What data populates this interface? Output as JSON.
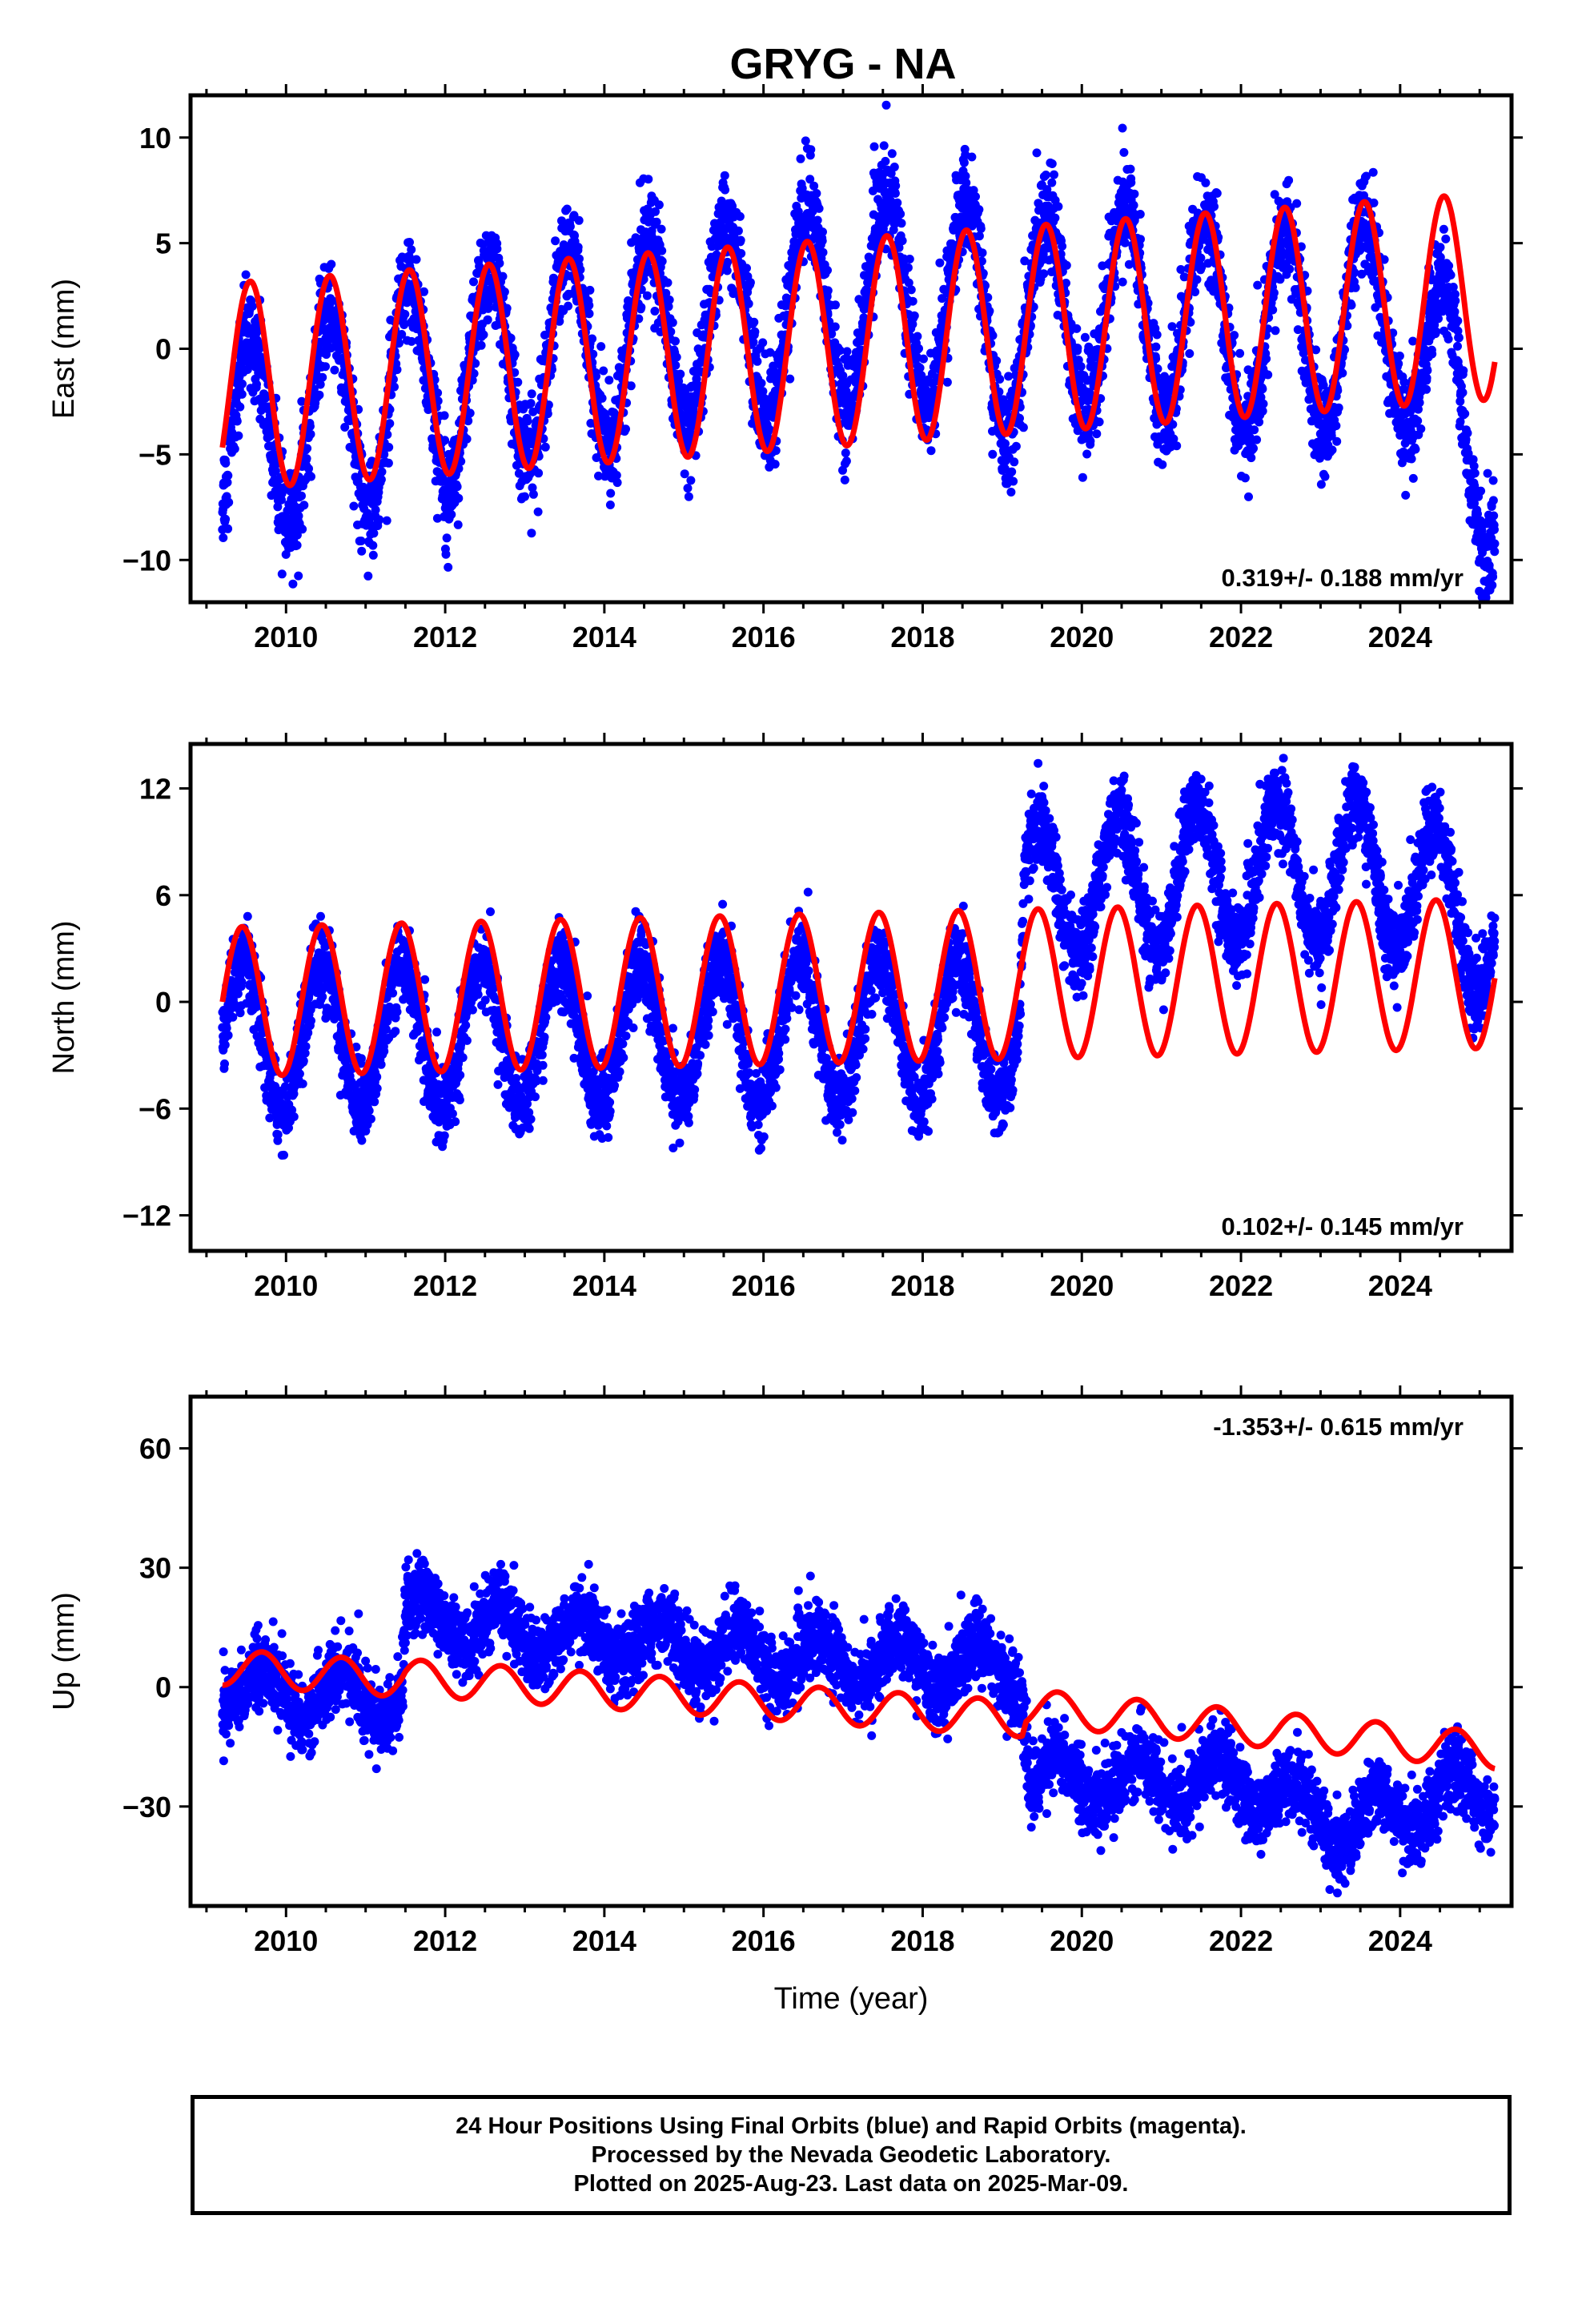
{
  "title": "GRYG - NA",
  "footer": {
    "line1": "24 Hour Positions Using Final Orbits (blue) and Rapid Orbits (magenta).",
    "line2": "Processed by the Nevada Geodetic Laboratory.",
    "line3": "Plotted on 2025-Aug-23. Last data on 2025-Mar-09."
  },
  "colors": {
    "observations": "#0000ff",
    "model": "#ff0000",
    "axis": "#000000"
  },
  "chart_data": [
    {
      "type": "scatter",
      "ylabel": "East (mm)",
      "xlabel": "",
      "xlim": [
        2008.8,
        2025.4
      ],
      "ylim": [
        -12,
        12
      ],
      "xticks": [
        "2010",
        "2012",
        "2014",
        "2016",
        "2018",
        "2020",
        "2022",
        "2024"
      ],
      "yticks": [
        10,
        5,
        0,
        -5,
        -10
      ],
      "rate_label": "0.319+/- 0.188 mm/yr",
      "rate_position": "bottom-right",
      "grid": false,
      "series": [
        {
          "kind": "observations",
          "time_range": [
            2009.2,
            2025.19
          ],
          "seasonal_amplitude": 4.8,
          "trend": [
            [
              2009.2,
              -4.5
            ],
            [
              2013.0,
              -0.5
            ],
            [
              2017.6,
              2.5
            ],
            [
              2018.6,
              2.0
            ],
            [
              2019.0,
              0.5
            ],
            [
              2020.0,
              2.0
            ],
            [
              2021.5,
              1.5
            ],
            [
              2022.2,
              0.5
            ],
            [
              2024.0,
              1.5
            ],
            [
              2025.19,
              -5.5
            ]
          ],
          "noise": 1.2
        },
        {
          "kind": "model",
          "time_range": [
            2009.2,
            2025.19
          ],
          "seasonal_amplitude": 4.9,
          "trend": [
            [
              2009.2,
              -1.8
            ],
            [
              2025.19,
              2.5
            ]
          ],
          "peak_times": [
            2009.55,
            2010.55,
            2011.55,
            2012.55,
            2013.55,
            2014.55,
            2015.55,
            2016.55,
            2017.55,
            2018.55,
            2019.55,
            2020.55,
            2021.55,
            2022.55,
            2023.55,
            2024.55
          ]
        }
      ]
    },
    {
      "type": "scatter",
      "ylabel": "North (mm)",
      "xlabel": "",
      "xlim": [
        2008.8,
        2025.4
      ],
      "ylim": [
        -14,
        14.5
      ],
      "xticks": [
        "2010",
        "2012",
        "2014",
        "2016",
        "2018",
        "2020",
        "2022",
        "2024"
      ],
      "yticks": [
        12,
        6,
        0,
        -6,
        -12
      ],
      "rate_label": "0.102+/- 0.145 mm/yr",
      "rate_position": "bottom-right",
      "grid": false,
      "series": [
        {
          "kind": "observations",
          "time_range": [
            2009.2,
            2025.19
          ],
          "seasonal_amplitude": 4.0,
          "trend": [
            [
              2009.2,
              -2.0
            ],
            [
              2019.2,
              -1.5
            ],
            [
              2019.3,
              6.0
            ],
            [
              2022.5,
              7.5
            ],
            [
              2024.0,
              7.0
            ],
            [
              2025.19,
              4.0
            ]
          ],
          "noise": 1.1
        },
        {
          "kind": "model",
          "time_range": [
            2009.2,
            2025.19
          ],
          "seasonal_amplitude": 4.2,
          "trend": [
            [
              2009.2,
              0.0
            ],
            [
              2025.19,
              1.6
            ]
          ],
          "peak_times": [
            2009.45,
            2010.45,
            2011.45,
            2012.45,
            2013.45,
            2014.45,
            2015.45,
            2016.45,
            2017.45,
            2018.45,
            2019.45,
            2020.45,
            2021.45,
            2022.45,
            2023.45,
            2024.45
          ]
        }
      ]
    },
    {
      "type": "scatter",
      "ylabel": "Up (mm)",
      "xlabel": "Time (year)",
      "xlim": [
        2008.8,
        2025.4
      ],
      "ylim": [
        -55,
        73
      ],
      "xticks": [
        "2010",
        "2012",
        "2014",
        "2016",
        "2018",
        "2020",
        "2022",
        "2024"
      ],
      "yticks": [
        60,
        30,
        0,
        -30
      ],
      "rate_label": "-1.353+/- 0.615 mm/yr",
      "rate_position": "top-right",
      "grid": false,
      "series": [
        {
          "kind": "observations",
          "time_range": [
            2009.2,
            2025.19
          ],
          "seasonal_amplitude": 6.0,
          "trend": [
            [
              2009.2,
              0.0
            ],
            [
              2011.45,
              -3.0
            ],
            [
              2011.5,
              18.0
            ],
            [
              2013.0,
              14.0
            ],
            [
              2016.0,
              8.0
            ],
            [
              2019.25,
              4.0
            ],
            [
              2019.35,
              -23.0
            ],
            [
              2022.0,
              -24.0
            ],
            [
              2023.3,
              -35.0
            ],
            [
              2024.5,
              -28.0
            ],
            [
              2025.19,
              -27.0
            ]
          ],
          "noise": 4.5
        },
        {
          "kind": "model",
          "time_range": [
            2009.2,
            2025.19
          ],
          "seasonal_amplitude": 4.5,
          "trend": [
            [
              2009.2,
              5.0
            ],
            [
              2011.45,
              2.0
            ],
            [
              2011.5,
              2.5
            ],
            [
              2019.25,
              -8.0
            ],
            [
              2019.3,
              -5.0
            ],
            [
              2025.19,
              -16.0
            ]
          ],
          "peak_times": [
            2009.7,
            2010.7,
            2011.7,
            2012.7,
            2013.7,
            2014.7,
            2015.7,
            2016.7,
            2017.7,
            2018.7,
            2019.7,
            2020.7,
            2021.7,
            2022.7,
            2023.7,
            2024.7
          ]
        }
      ]
    }
  ]
}
